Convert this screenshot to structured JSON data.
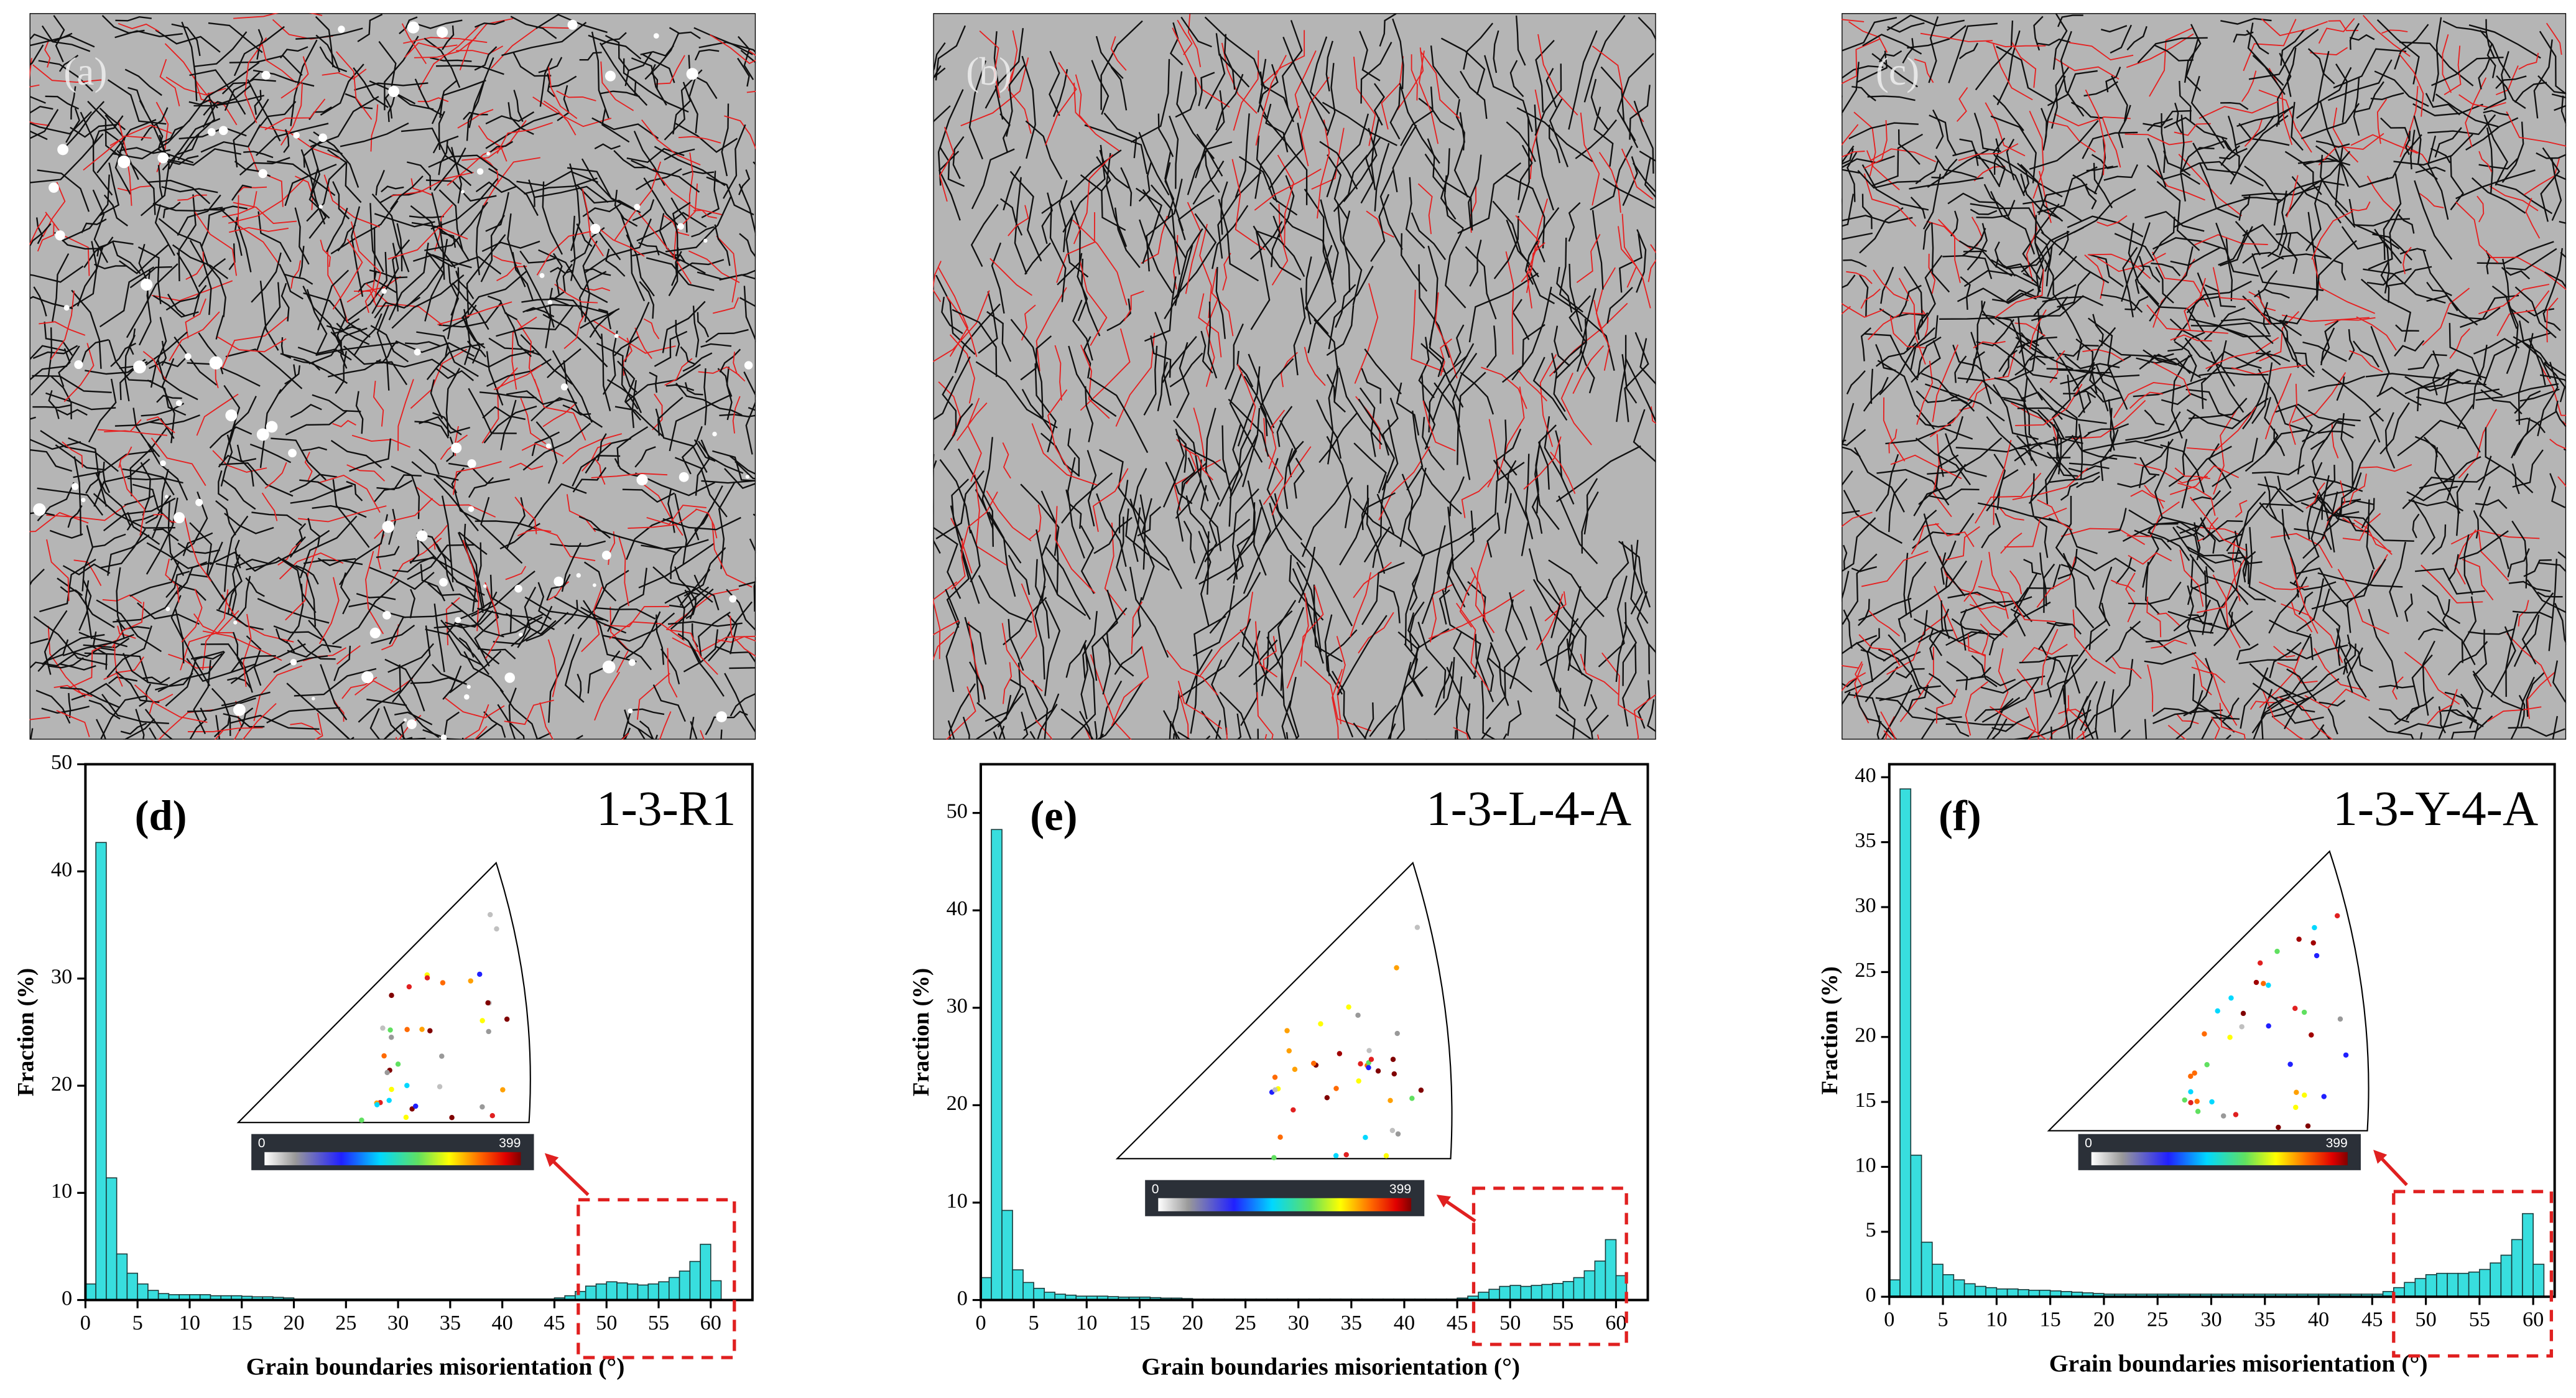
{
  "maps": [
    {
      "label": "(a)"
    },
    {
      "label": "(b)"
    },
    {
      "label": "(c)"
    }
  ],
  "chart_data": [
    {
      "type": "histogram",
      "annotation": "(d)",
      "title": "1-3-R1",
      "x_label": "Grain boundaries misorientation (°)",
      "y_label": "Fraction (%)",
      "color": "#38dede",
      "bins": [
        0,
        1,
        2,
        3,
        4,
        5,
        6,
        7,
        8,
        9,
        10,
        11,
        12,
        13,
        14,
        15,
        16,
        17,
        18,
        19,
        20,
        21,
        22,
        23,
        24,
        25,
        26,
        27,
        28,
        29,
        30,
        31,
        32,
        33,
        34,
        35,
        36,
        37,
        38,
        39,
        40,
        41,
        42,
        43,
        44,
        45,
        46,
        47,
        48,
        49,
        50,
        51,
        52,
        53,
        54,
        55,
        56,
        57,
        58,
        59,
        60,
        61
      ],
      "values": [
        1.5,
        42.7,
        11.4,
        4.3,
        2.5,
        1.5,
        0.9,
        0.6,
        0.5,
        0.5,
        0.5,
        0.5,
        0.4,
        0.4,
        0.4,
        0.35,
        0.3,
        0.3,
        0.25,
        0.2,
        0.1,
        0.1,
        0.1,
        0.1,
        0.1,
        0.1,
        0.1,
        0.1,
        0.1,
        0.1,
        0.1,
        0.1,
        0.1,
        0.1,
        0.1,
        0.1,
        0.1,
        0.1,
        0.1,
        0.1,
        0.1,
        0.1,
        0.1,
        0.1,
        0.1,
        0.2,
        0.4,
        0.8,
        1.3,
        1.5,
        1.7,
        1.6,
        1.5,
        1.4,
        1.5,
        1.7,
        2.1,
        2.7,
        3.6,
        5.2,
        1.8
      ],
      "xlim": [
        0,
        64
      ],
      "xticks": [
        0,
        5,
        10,
        15,
        20,
        25,
        30,
        35,
        40,
        45,
        50,
        55,
        60
      ],
      "ylim": [
        0,
        50
      ],
      "yticks": [
        0,
        10,
        20,
        30,
        40,
        50
      ],
      "colorbar": {
        "min": 0,
        "max": 399
      }
    },
    {
      "type": "histogram",
      "annotation": "(e)",
      "title": "1-3-L-4-A",
      "x_label": "Grain boundaries misorientation (°)",
      "y_label": "Fraction (%)",
      "color": "#38dede",
      "bins": [
        0,
        1,
        2,
        3,
        4,
        5,
        6,
        7,
        8,
        9,
        10,
        11,
        12,
        13,
        14,
        15,
        16,
        17,
        18,
        19,
        20,
        21,
        22,
        23,
        24,
        25,
        26,
        27,
        28,
        29,
        30,
        31,
        32,
        33,
        34,
        35,
        36,
        37,
        38,
        39,
        40,
        41,
        42,
        43,
        44,
        45,
        46,
        47,
        48,
        49,
        50,
        51,
        52,
        53,
        54,
        55,
        56,
        57,
        58,
        59,
        60,
        61
      ],
      "values": [
        2.3,
        48.3,
        9.2,
        3.1,
        1.8,
        1.2,
        0.8,
        0.6,
        0.5,
        0.4,
        0.4,
        0.4,
        0.35,
        0.3,
        0.3,
        0.3,
        0.25,
        0.2,
        0.2,
        0.15,
        0.1,
        0.1,
        0.1,
        0.1,
        0.1,
        0.1,
        0.1,
        0.1,
        0.1,
        0.1,
        0.1,
        0.1,
        0.1,
        0.1,
        0.1,
        0.1,
        0.1,
        0.1,
        0.1,
        0.1,
        0.1,
        0.1,
        0.1,
        0.1,
        0.1,
        0.2,
        0.4,
        0.8,
        1.1,
        1.4,
        1.5,
        1.4,
        1.5,
        1.6,
        1.7,
        1.9,
        2.3,
        3.0,
        4.0,
        6.2,
        2.5
      ],
      "xlim": [
        0,
        63
      ],
      "xticks": [
        0,
        5,
        10,
        15,
        20,
        25,
        30,
        35,
        40,
        45,
        50,
        55,
        60
      ],
      "ylim": [
        0,
        55
      ],
      "yticks": [
        0,
        10,
        20,
        30,
        40,
        50
      ],
      "colorbar": {
        "min": 0,
        "max": 399
      }
    },
    {
      "type": "histogram",
      "annotation": "(f)",
      "title": "1-3-Y-4-A",
      "x_label": "Grain boundaries misorientation (°)",
      "y_label": "Fraction (%)",
      "color": "#38dede",
      "bins": [
        0,
        1,
        2,
        3,
        4,
        5,
        6,
        7,
        8,
        9,
        10,
        11,
        12,
        13,
        14,
        15,
        16,
        17,
        18,
        19,
        20,
        21,
        22,
        23,
        24,
        25,
        26,
        27,
        28,
        29,
        30,
        31,
        32,
        33,
        34,
        35,
        36,
        37,
        38,
        39,
        40,
        41,
        42,
        43,
        44,
        45,
        46,
        47,
        48,
        49,
        50,
        51,
        52,
        53,
        54,
        55,
        56,
        57,
        58,
        59,
        60,
        61
      ],
      "values": [
        1.3,
        39.1,
        10.9,
        4.2,
        2.5,
        1.7,
        1.3,
        1.0,
        0.8,
        0.7,
        0.6,
        0.6,
        0.55,
        0.5,
        0.5,
        0.45,
        0.4,
        0.35,
        0.3,
        0.25,
        0.2,
        0.2,
        0.2,
        0.2,
        0.2,
        0.2,
        0.2,
        0.2,
        0.2,
        0.2,
        0.2,
        0.2,
        0.2,
        0.2,
        0.2,
        0.2,
        0.2,
        0.2,
        0.2,
        0.2,
        0.2,
        0.2,
        0.2,
        0.2,
        0.2,
        0.2,
        0.4,
        0.7,
        1.1,
        1.4,
        1.7,
        1.8,
        1.8,
        1.8,
        1.9,
        2.1,
        2.6,
        3.2,
        4.4,
        6.4,
        2.5
      ],
      "xlim": [
        0,
        62
      ],
      "xticks": [
        0,
        5,
        10,
        15,
        20,
        25,
        30,
        35,
        40,
        45,
        50,
        55,
        60
      ],
      "ylim": [
        0,
        41
      ],
      "yticks": [
        0,
        5,
        10,
        15,
        20,
        25,
        30,
        35,
        40
      ],
      "colorbar": {
        "min": 0,
        "max": 399
      }
    }
  ]
}
